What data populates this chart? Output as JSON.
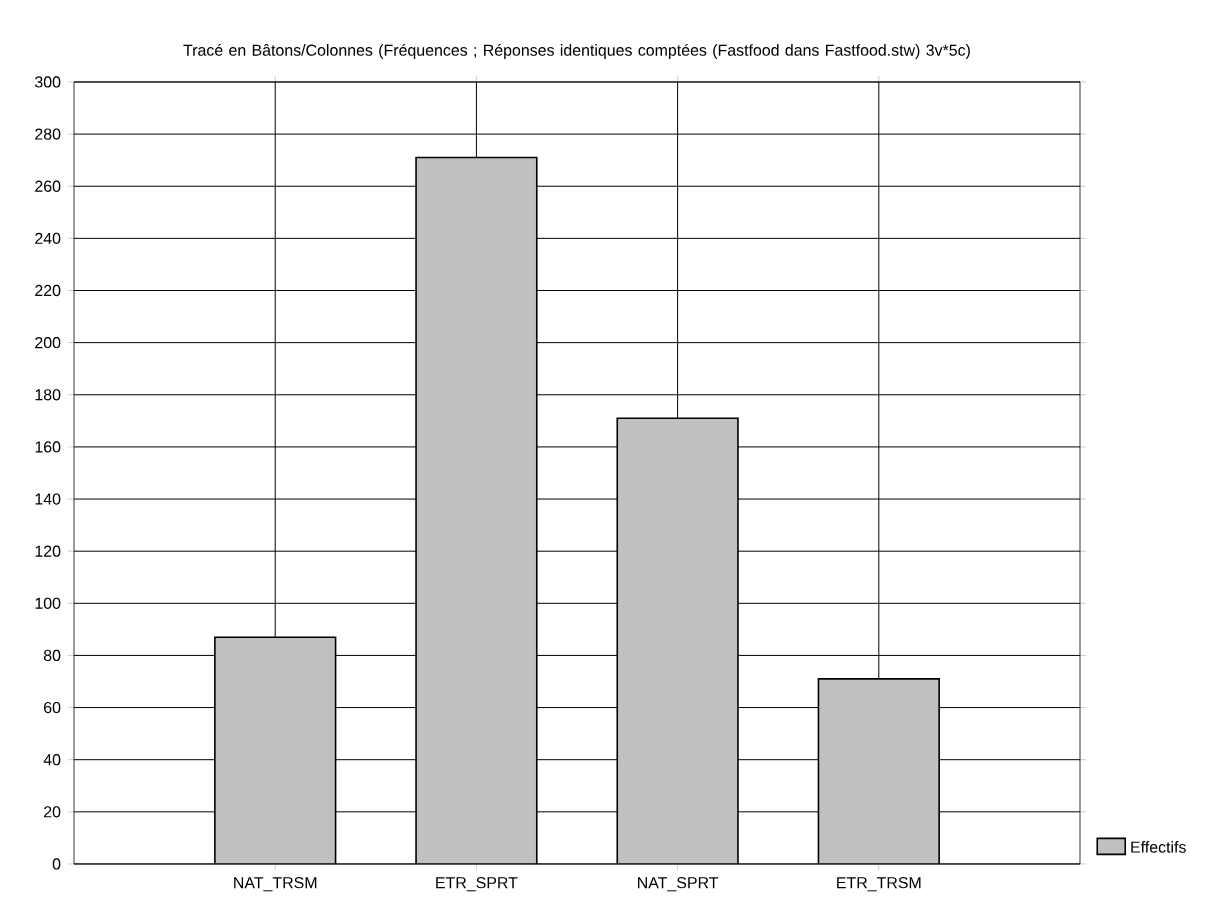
{
  "chart_data": {
    "type": "bar",
    "title": "Tracé en Bâtons/Colonnes (Fréquences ; Réponses identiques comptées (Fastfood dans Fastfood.stw) 3v*5c)",
    "categories": [
      "NAT_TRSM",
      "ETR_SPRT",
      "NAT_SPRT",
      "ETR_TRSM"
    ],
    "series": [
      {
        "name": "Effectifs",
        "color": "#c0c0c0",
        "values": [
          87,
          271,
          171,
          71
        ]
      }
    ],
    "ylim": [
      0,
      300
    ],
    "yticks": [
      0,
      20,
      40,
      60,
      80,
      100,
      120,
      140,
      160,
      180,
      200,
      220,
      240,
      260,
      280,
      300
    ],
    "grid": true,
    "legend": "bottom right"
  }
}
